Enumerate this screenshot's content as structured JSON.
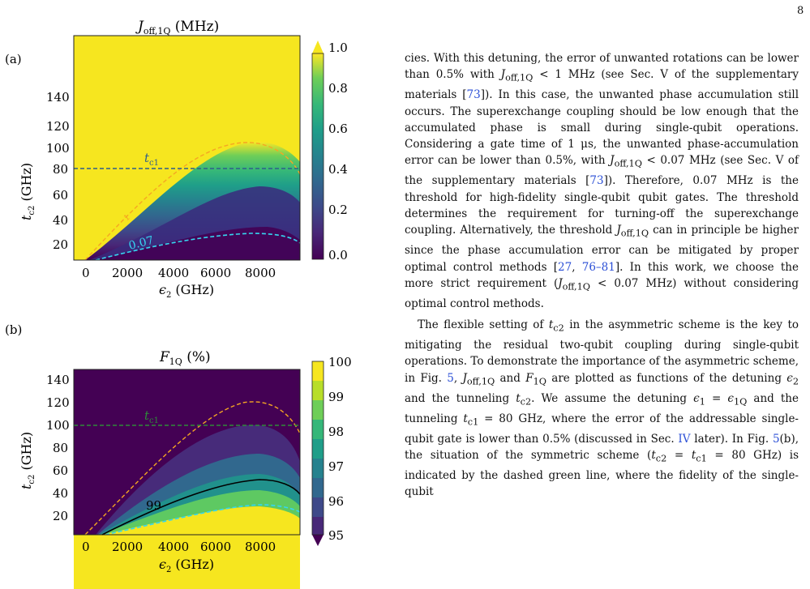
{
  "page_number": "8",
  "figure": {
    "panel_a": {
      "label": "(a)",
      "title": "J",
      "title_sub": "off,1Q",
      "title_unit": " (MHz)",
      "ylabel": "t",
      "ylabel_sub": "c2",
      "ylabel_unit": " (GHz)",
      "xlabel": "ϵ",
      "xlabel_sub": "2",
      "xlabel_unit": " (GHz)",
      "yticks": [
        "140",
        "120",
        "100",
        "80",
        "60",
        "40",
        "20"
      ],
      "xticks": [
        "0",
        "2000",
        "4000",
        "6000",
        "8000"
      ],
      "colorbar_ticks": [
        "1.0",
        "0.8",
        "0.6",
        "0.4",
        "0.2",
        "0.0"
      ],
      "annotation_tc1": "t",
      "annotation_tc1_sub": "c1",
      "contour_label": "0.07",
      "contour_label_small": "1"
    },
    "panel_b": {
      "label": "(b)",
      "title": "F",
      "title_sub": "1Q",
      "title_unit": " (%)",
      "ylabel": "t",
      "ylabel_sub": "c2",
      "ylabel_unit": " (GHz)",
      "xlabel": "ϵ",
      "xlabel_sub": "2",
      "xlabel_unit": " (GHz)",
      "yticks": [
        "140",
        "120",
        "100",
        "80",
        "60",
        "40",
        "20"
      ],
      "xticks": [
        "0",
        "2000",
        "4000",
        "6000",
        "8000"
      ],
      "colorbar_ticks": [
        "100",
        "99",
        "98",
        "97",
        "96",
        "95"
      ],
      "annotation_tc1": "t",
      "annotation_tc1_sub": "c1",
      "contour_label": "99"
    },
    "colors": {
      "yellow": "#f6e61f",
      "dark_purple": "#440154",
      "orange_dashed": "#f5a623",
      "blue_dashed": "#2f5f8a",
      "cyan_dashed": "#35d6f0",
      "green_dashed": "#2e8b3a",
      "black_contour": "#000000"
    }
  },
  "text": {
    "p1": [
      "cies. With this detuning, the error of unwanted rotations can be lower than 0.5% with ",
      "J",
      "off,1Q",
      " < 1 MHz (see Sec. V of the supplementary materials [",
      "73",
      "]). In this case, the unwanted phase accumulation still occurs. The superexchange coupling should be low enough that the accumulated phase is small during single-qubit operations. Considering a gate time of 1 μs, the unwanted phase-accumulation error can be lower than 0.5%, with ",
      "J",
      "off,1Q",
      " < 0.07 MHz (see Sec. V of the supplementary materials [",
      "73",
      "]). Therefore, 0.07 MHz is the threshold for high-fidelity single-qubit qubit gates. The threshold determines the requirement for turning-off the superexchange coupling. Alternatively, the threshold ",
      "J",
      "off,1Q",
      " can in principle be higher since the phase accumulation error can be mitigated by proper optimal control methods [",
      "27",
      ", ",
      "76–81",
      "]. In this work, we choose the more strict requirement (",
      "J",
      "off,1Q",
      " < 0.07 MHz) without considering optimal control methods."
    ],
    "p2": [
      "The flexible setting of ",
      "t",
      "c2",
      " in the asymmetric scheme is the key to mitigating the residual two-qubit coupling during single-qubit operations. To demonstrate the importance of the asymmetric scheme, in Fig. ",
      "5",
      ", ",
      "J",
      "off,1Q",
      " and ",
      "F",
      "1Q",
      " are plotted as functions of the detuning ",
      "ϵ",
      "2",
      " and the tunneling ",
      "t",
      "c2",
      ". We assume the detuning ",
      "ϵ",
      "1",
      " = ",
      "ϵ",
      "1Q",
      " and the tunneling ",
      "t",
      "c1",
      " = 80 GHz, where the error of the addressable single-qubit gate is lower than 0.5% (discussed in Sec. ",
      "IV",
      " later). In Fig. ",
      "5",
      "(b), the situation of the symmetric scheme (",
      "t",
      "c2",
      " = ",
      "t",
      "c1",
      " = 80 GHz) is indicated by the dashed green line, where the fidelity of the single-qubit"
    ]
  }
}
